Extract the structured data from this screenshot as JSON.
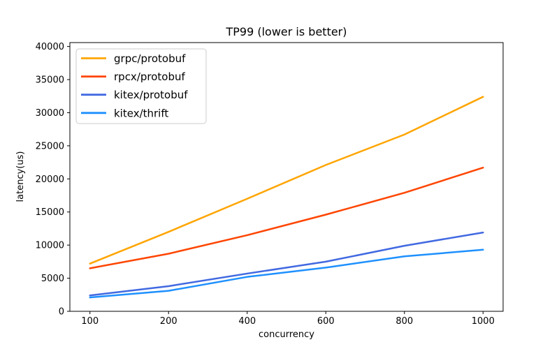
{
  "figure": {
    "background": "#ffffff",
    "spine_color": "#000000"
  },
  "chart_data": {
    "type": "line",
    "title": "TP99 (lower is better)",
    "xlabel": "concurrency",
    "ylabel": "latency(us)",
    "categories": [
      "100",
      "200",
      "400",
      "600",
      "800",
      "1000"
    ],
    "series": [
      {
        "name": "grpc/protobuf",
        "color": "#FFA500",
        "values": [
          7200,
          12000,
          17000,
          22100,
          26700,
          32400
        ]
      },
      {
        "name": "rpcx/protobuf",
        "color": "#FF4500",
        "values": [
          6500,
          8700,
          11500,
          14600,
          17900,
          21700
        ]
      },
      {
        "name": "kitex/protobuf",
        "color": "#4169E1",
        "values": [
          2400,
          3800,
          5700,
          7500,
          9900,
          11900
        ]
      },
      {
        "name": "kitex/thrift",
        "color": "#1E90FF",
        "values": [
          2100,
          3100,
          5200,
          6600,
          8300,
          9300
        ]
      }
    ],
    "yticks": [
      0,
      5000,
      10000,
      15000,
      20000,
      25000,
      30000,
      35000,
      40000
    ],
    "ylim": [
      0,
      40560
    ],
    "x_axis_spacing": "categorical-even",
    "grid": false,
    "legend_position": "upper left",
    "line_width": 2.5
  }
}
